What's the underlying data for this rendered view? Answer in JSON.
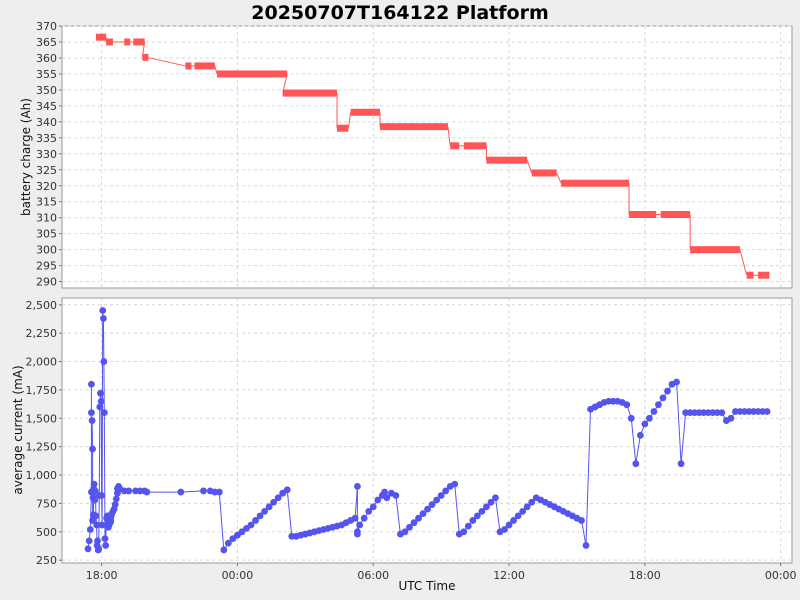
{
  "title": "20250707T164122 Platform",
  "chart_data": [
    {
      "type": "step-line",
      "title": "20250707T164122 Platform",
      "ylabel": "battery charge (Ah)",
      "xlabel": "",
      "ylim": [
        288,
        370
      ],
      "yticks": [
        290,
        295,
        300,
        305,
        310,
        315,
        320,
        325,
        330,
        335,
        340,
        345,
        350,
        355,
        360,
        365,
        370
      ],
      "color": "#ff5555",
      "grid": true,
      "segments": [
        {
          "x": [
            -6.25,
            -5.8
          ],
          "y": 366.5
        },
        {
          "x": [
            -5.8,
            -5.5
          ],
          "y": 365
        },
        {
          "x": [
            -5.0,
            -4.8
          ],
          "y": 365
        },
        {
          "x": [
            -4.6,
            -4.1
          ],
          "y": 365
        },
        {
          "x": [
            -4.2,
            -4.0
          ],
          "y": 360.2
        },
        {
          "x": [
            -2.3,
            -2.1
          ],
          "y": 357.5
        },
        {
          "x": [
            -1.9,
            -1.0
          ],
          "y": 357.5
        },
        {
          "x": [
            -0.9,
            2.2
          ],
          "y": 355
        },
        {
          "x": [
            2.0,
            4.4
          ],
          "y": 349
        },
        {
          "x": [
            4.4,
            4.9
          ],
          "y": 338
        },
        {
          "x": [
            5.0,
            6.3
          ],
          "y": 343
        },
        {
          "x": [
            6.3,
            9.3
          ],
          "y": 338.5
        },
        {
          "x": [
            9.4,
            9.8
          ],
          "y": 332.5
        },
        {
          "x": [
            10.0,
            11.0
          ],
          "y": 332.5
        },
        {
          "x": [
            11.0,
            12.8
          ],
          "y": 328
        },
        {
          "x": [
            13.0,
            14.1
          ],
          "y": 324
        },
        {
          "x": [
            14.3,
            17.3
          ],
          "y": 320.8
        },
        {
          "x": [
            17.3,
            18.5
          ],
          "y": 311
        },
        {
          "x": [
            18.7,
            20.0
          ],
          "y": 311
        },
        {
          "x": [
            20.0,
            22.2
          ],
          "y": 300
        },
        {
          "x": [
            22.5,
            22.8
          ],
          "y": 292
        },
        {
          "x": [
            23.0,
            23.5
          ],
          "y": 292
        }
      ]
    },
    {
      "type": "line",
      "title": "",
      "ylabel": "average current (mA)",
      "xlabel": "UTC Time",
      "ylim": [
        225,
        2560
      ],
      "yticks": [
        250,
        500,
        750,
        1000,
        1250,
        1500,
        1750,
        2000,
        2250,
        2500
      ],
      "ytick_labels": [
        "250",
        "500",
        "750",
        "1,000",
        "1,250",
        "1,500",
        "1,750",
        "2,000",
        "2,250",
        "2,500"
      ],
      "xlim": [
        -7.75,
        24.5
      ],
      "xticks": [
        -6,
        0,
        6,
        12,
        18,
        24
      ],
      "xtick_labels": [
        "18:00",
        "00:00",
        "06:00",
        "12:00",
        "18:00",
        "00:00"
      ],
      "color": "#5555ee",
      "grid": true,
      "x": [
        -6.6,
        -6.55,
        -6.5,
        -6.45,
        -6.45,
        -6.45,
        -6.42,
        -6.4,
        -6.4,
        -6.38,
        -6.36,
        -6.35,
        -6.33,
        -6.3,
        -6.28,
        -6.25,
        -6.22,
        -6.2,
        -6.18,
        -6.15,
        -6.13,
        -6.1,
        -6.08,
        -6.05,
        -6.02,
        -6.0,
        -5.98,
        -5.95,
        -5.92,
        -5.9,
        -5.88,
        -5.85,
        -5.82,
        -5.8,
        -5.78,
        -5.75,
        -5.72,
        -5.7,
        -5.68,
        -5.65,
        -5.62,
        -5.6,
        -5.6,
        -5.6,
        -5.58,
        -5.55,
        -5.5,
        -5.45,
        -5.4,
        -5.35,
        -5.3,
        -5.3,
        -5.25,
        -5.2,
        -5.0,
        -4.8,
        -4.5,
        -4.3,
        -4.1,
        -4.0,
        -2.5,
        -1.5,
        -1.2,
        -1.0,
        -0.8,
        -0.6,
        -0.4,
        -0.2,
        0.0,
        0.2,
        0.4,
        0.6,
        0.8,
        1.0,
        1.2,
        1.4,
        1.6,
        1.8,
        2.0,
        2.2,
        2.4,
        2.6,
        2.8,
        3.0,
        3.2,
        3.4,
        3.6,
        3.8,
        4.0,
        4.2,
        4.4,
        4.6,
        4.8,
        5.0,
        5.2,
        5.3,
        5.3,
        5.3,
        5.4,
        5.6,
        5.8,
        6.0,
        6.2,
        6.4,
        6.5,
        6.6,
        6.8,
        7.0,
        7.2,
        7.4,
        7.6,
        7.8,
        8.0,
        8.2,
        8.4,
        8.6,
        8.8,
        9.0,
        9.2,
        9.4,
        9.6,
        9.8,
        10.0,
        10.2,
        10.4,
        10.6,
        10.8,
        11.0,
        11.2,
        11.4,
        11.6,
        11.8,
        12.0,
        12.2,
        12.4,
        12.6,
        12.8,
        13.0,
        13.2,
        13.4,
        13.6,
        13.8,
        14.0,
        14.2,
        14.4,
        14.6,
        14.8,
        15.0,
        15.2,
        15.4,
        15.6,
        15.8,
        16.0,
        16.2,
        16.4,
        16.6,
        16.8,
        17.0,
        17.2,
        17.4,
        17.6,
        17.8,
        18.0,
        18.2,
        18.4,
        18.6,
        18.8,
        19.0,
        19.2,
        19.4,
        19.6,
        19.8,
        20.0,
        20.2,
        20.4,
        20.6,
        20.8,
        21.0,
        21.2,
        21.4,
        21.6,
        21.8,
        22.0,
        22.2,
        22.4,
        22.6,
        22.8,
        23.0,
        23.2,
        23.4
      ],
      "y": [
        350,
        420,
        520,
        850,
        1800,
        1550,
        1480,
        1230,
        600,
        800,
        650,
        880,
        920,
        780,
        860,
        640,
        560,
        380,
        420,
        340,
        350,
        820,
        1600,
        1720,
        1650,
        820,
        560,
        2450,
        2380,
        2000,
        1550,
        440,
        380,
        560,
        620,
        640,
        560,
        540,
        560,
        570,
        580,
        590,
        600,
        620,
        640,
        660,
        680,
        700,
        740,
        790,
        840,
        880,
        900,
        880,
        860,
        860,
        860,
        860,
        860,
        850,
        850,
        860,
        860,
        850,
        850,
        340,
        400,
        440,
        470,
        500,
        530,
        560,
        600,
        640,
        680,
        720,
        760,
        800,
        840,
        870,
        460,
        460,
        470,
        480,
        490,
        500,
        510,
        520,
        530,
        540,
        550,
        560,
        580,
        600,
        620,
        900,
        480,
        500,
        560,
        620,
        680,
        720,
        780,
        820,
        850,
        800,
        840,
        820,
        480,
        500,
        540,
        580,
        620,
        660,
        700,
        740,
        780,
        820,
        860,
        900,
        920,
        480,
        500,
        550,
        600,
        640,
        680,
        720,
        760,
        800,
        500,
        520,
        560,
        600,
        640,
        680,
        720,
        760,
        800,
        780,
        760,
        740,
        720,
        700,
        680,
        660,
        640,
        620,
        600,
        380,
        1580,
        1600,
        1620,
        1640,
        1650,
        1650,
        1650,
        1640,
        1620,
        1500,
        1100,
        1350,
        1450,
        1500,
        1560,
        1620,
        1680,
        1740,
        1800,
        1820,
        1100,
        1550,
        1550,
        1550,
        1550,
        1550,
        1550,
        1550,
        1550,
        1550,
        1480,
        1500,
        1560,
        1560,
        1560,
        1560,
        1560,
        1560,
        1560,
        1560
      ]
    }
  ]
}
